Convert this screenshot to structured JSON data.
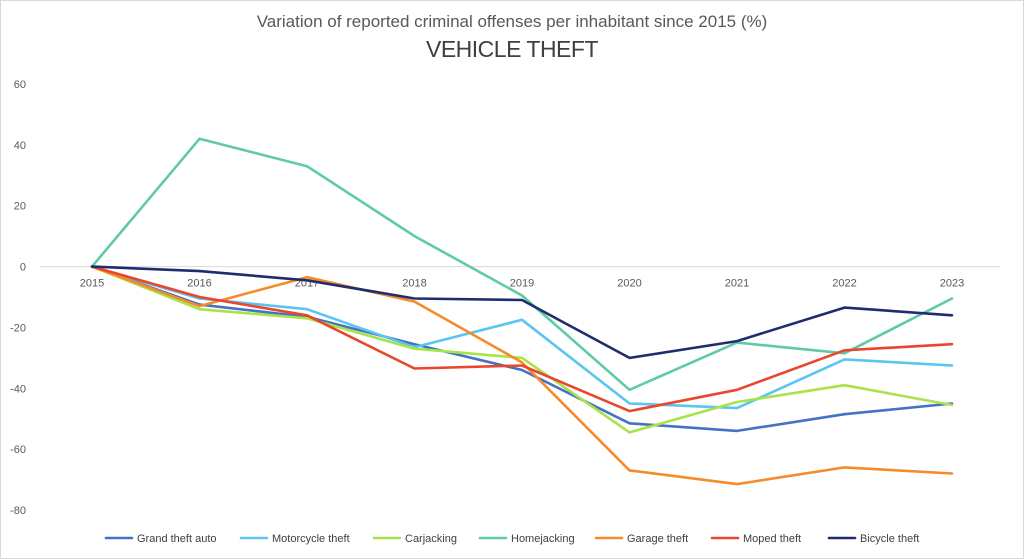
{
  "chart_data": {
    "type": "line",
    "title": "VEHICLE THEFT",
    "subtitle": "Variation of reported criminal offenses per inhabitant since 2015 (%)",
    "x": [
      "2015",
      "2016",
      "2017",
      "2018",
      "2019",
      "2020",
      "2021",
      "2022",
      "2023"
    ],
    "ylim": [
      -80,
      60
    ],
    "yticks": [
      60,
      40,
      20,
      0,
      -20,
      -40,
      -60,
      -80
    ],
    "grid": false,
    "legend_position": "bottom",
    "series": [
      {
        "name": "Grand theft auto",
        "color": "#4472c4",
        "values": [
          0,
          -12.5,
          -16.5,
          -25.5,
          -34.0,
          -51.5,
          -54.0,
          -48.5,
          -45.0
        ]
      },
      {
        "name": "Motorcycle theft",
        "color": "#5bc5f2",
        "values": [
          0,
          -10.5,
          -14.0,
          -26.5,
          -17.5,
          -45.0,
          -46.5,
          -30.5,
          -32.5
        ]
      },
      {
        "name": "Carjacking",
        "color": "#a9e34b",
        "values": [
          0,
          -14.0,
          -17.0,
          -27.0,
          -30.0,
          -54.5,
          -44.5,
          -39.0,
          -45.5
        ]
      },
      {
        "name": "Homejacking",
        "color": "#5ecba6",
        "values": [
          0,
          42.0,
          33.0,
          10.0,
          -9.5,
          -40.5,
          -25.0,
          -28.5,
          -10.5
        ]
      },
      {
        "name": "Garage theft",
        "color": "#f58c29",
        "values": [
          0,
          -13.0,
          -3.5,
          -11.5,
          -31.5,
          -67.0,
          -71.5,
          -66.0,
          -68.0
        ]
      },
      {
        "name": "Moped theft",
        "color": "#e8472d",
        "values": [
          0,
          -10.0,
          -16.0,
          -33.5,
          -32.5,
          -47.5,
          -40.5,
          -27.5,
          -25.5
        ]
      },
      {
        "name": "Bicycle theft",
        "color": "#1f2d6e",
        "values": [
          0,
          -1.5,
          -4.5,
          -10.5,
          -11.0,
          -30.0,
          -24.5,
          -13.5,
          -16.0
        ]
      }
    ]
  }
}
